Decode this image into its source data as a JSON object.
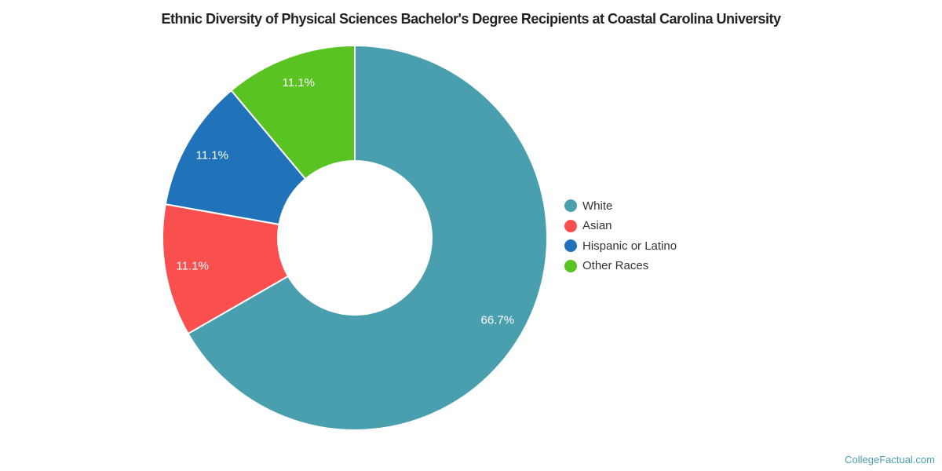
{
  "title": "Ethnic Diversity of Physical Sciences Bachelor's Degree Recipients at Coastal Carolina University",
  "watermark": "CollegeFactual.com",
  "colors": {
    "title_text": "#222222",
    "legend_text": "#333333",
    "slice_label_text": "#ffffff",
    "watermark_text": "#4A9FAF",
    "slice_border": "#ffffff"
  },
  "chart_data": {
    "type": "pie",
    "donut": true,
    "title": "Ethnic Diversity of Physical Sciences Bachelor's Degree Recipients at Coastal Carolina University",
    "start_angle_deg": 0,
    "direction": "clockwise",
    "legend_position": "right",
    "slices": [
      {
        "label": "White",
        "value": 66.7,
        "display": "66.7%",
        "color": "#4A9FAF"
      },
      {
        "label": "Asian",
        "value": 11.1,
        "display": "11.1%",
        "color": "#F9504F"
      },
      {
        "label": "Hispanic or Latino",
        "value": 11.1,
        "display": "11.1%",
        "color": "#2173B9"
      },
      {
        "label": "Other Races",
        "value": 11.1,
        "display": "11.1%",
        "color": "#58C321"
      }
    ]
  }
}
